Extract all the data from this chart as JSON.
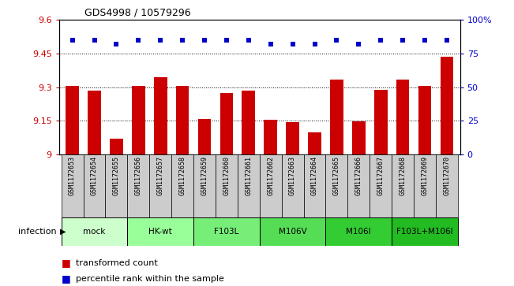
{
  "title": "GDS4998 / 10579296",
  "samples": [
    "GSM1172653",
    "GSM1172654",
    "GSM1172655",
    "GSM1172656",
    "GSM1172657",
    "GSM1172658",
    "GSM1172659",
    "GSM1172660",
    "GSM1172661",
    "GSM1172662",
    "GSM1172663",
    "GSM1172664",
    "GSM1172665",
    "GSM1172666",
    "GSM1172667",
    "GSM1172668",
    "GSM1172669",
    "GSM1172670"
  ],
  "bar_values": [
    9.305,
    9.285,
    9.07,
    9.305,
    9.345,
    9.305,
    9.16,
    9.275,
    9.285,
    9.155,
    9.145,
    9.1,
    9.335,
    9.148,
    9.29,
    9.335,
    9.305,
    9.435
  ],
  "percentile_values": [
    85,
    85,
    82,
    85,
    85,
    85,
    85,
    85,
    85,
    82,
    82,
    82,
    85,
    82,
    85,
    85,
    85,
    85
  ],
  "ylim_left": [
    9.0,
    9.6
  ],
  "ylim_right": [
    0,
    100
  ],
  "yticks_left": [
    9.0,
    9.15,
    9.3,
    9.45,
    9.6
  ],
  "ytick_labels_left": [
    "9",
    "9.15",
    "9.3",
    "9.45",
    "9.6"
  ],
  "yticks_right": [
    0,
    25,
    50,
    75,
    100
  ],
  "ytick_labels_right": [
    "0",
    "25",
    "50",
    "75",
    "100%"
  ],
  "bar_color": "#cc0000",
  "dot_color": "#0000cc",
  "groups": [
    {
      "label": "mock",
      "start": 0,
      "end": 2,
      "color": "#ccffcc"
    },
    {
      "label": "HK-wt",
      "start": 3,
      "end": 5,
      "color": "#99ff99"
    },
    {
      "label": "F103L",
      "start": 6,
      "end": 8,
      "color": "#77ee77"
    },
    {
      "label": "M106V",
      "start": 9,
      "end": 11,
      "color": "#55dd55"
    },
    {
      "label": "M106I",
      "start": 12,
      "end": 14,
      "color": "#33cc33"
    },
    {
      "label": "F103L+M106I",
      "start": 15,
      "end": 17,
      "color": "#22bb22"
    }
  ],
  "infection_label": "infection",
  "legend_bar_label": "transformed count",
  "legend_dot_label": "percentile rank within the sample",
  "background_color": "#ffffff",
  "tick_color_left": "#cc0000",
  "tick_color_right": "#0000cc",
  "grid_yticks": [
    9.15,
    9.3,
    9.45
  ],
  "bar_bottom": 9.0,
  "sample_box_color": "#cccccc",
  "sample_box_edge": "#888888"
}
